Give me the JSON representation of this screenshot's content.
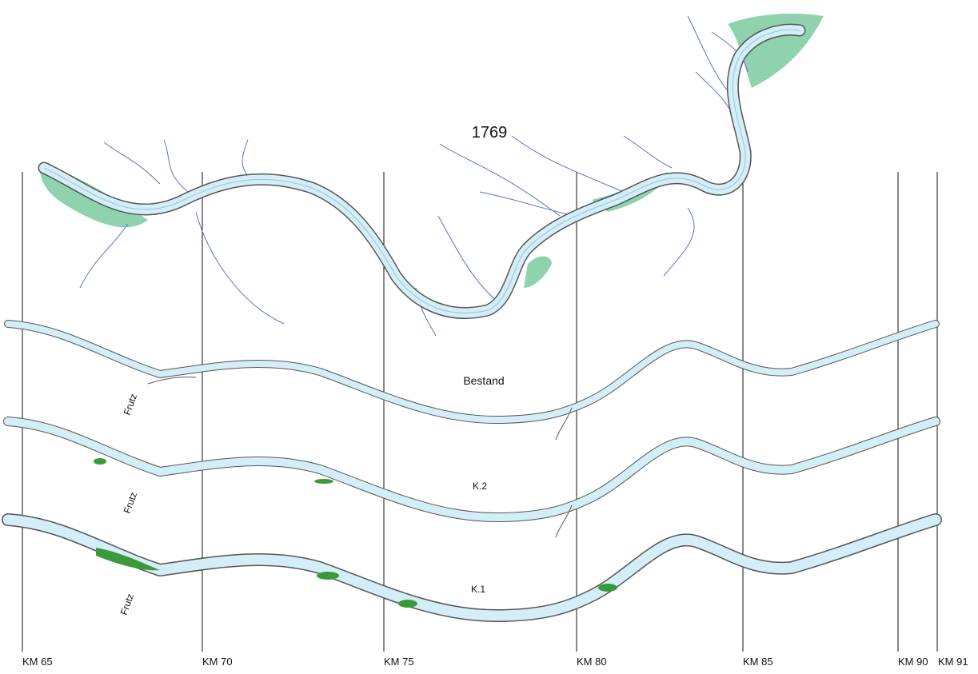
{
  "title": "1769",
  "sections": [
    {
      "label": "Bestand",
      "tributary": "Frutz"
    },
    {
      "label": "K.2",
      "tributary": "Frutz"
    },
    {
      "label": "K.1",
      "tributary": "Frutz"
    }
  ],
  "km_markers": [
    "KM 65",
    "KM 70",
    "KM 75",
    "KM 80",
    "KM 85",
    "KM 90",
    "KM 91"
  ]
}
